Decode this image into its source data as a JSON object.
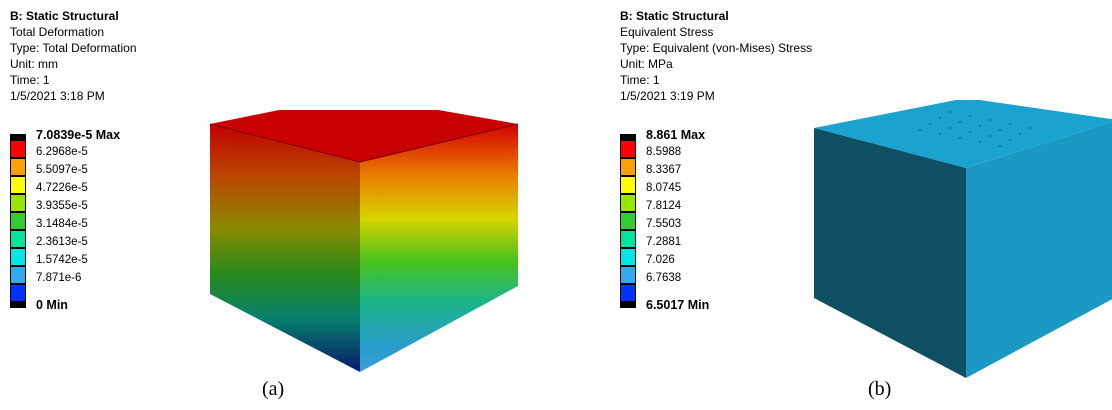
{
  "panel_a": {
    "analysis": "B: Static Structural",
    "result": "Total Deformation",
    "type": "Type: Total Deformation",
    "unit": "Unit: mm",
    "time": "Time: 1",
    "date": "1/5/2021 3:18 PM",
    "legend": {
      "max_label": "7.0839e-5 Max",
      "min_label": "0 Min",
      "levels": [
        "6.2968e-5",
        "5.5097e-5",
        "4.7226e-5",
        "3.9355e-5",
        "3.1484e-5",
        "2.3613e-5",
        "1.5742e-5",
        "7.871e-6"
      ],
      "colors": [
        "#ff0000",
        "#ff9f00",
        "#ffff00",
        "#99e500",
        "#33cc33",
        "#00e59a",
        "#00e5e5",
        "#33aaee",
        "#0033ff"
      ]
    },
    "caption": "(a)"
  },
  "panel_b": {
    "analysis": "B: Static Structural",
    "result": "Equivalent Stress",
    "type": "Type: Equivalent (von-Mises) Stress",
    "unit": "Unit: MPa",
    "time": "Time: 1",
    "date": "1/5/2021 3:19 PM",
    "legend": {
      "max_label": "8.861 Max",
      "min_label": "6.5017 Min",
      "levels": [
        "8.5988",
        "8.3367",
        "8.0745",
        "7.8124",
        "7.5503",
        "7.2881",
        "7.026",
        "6.7638"
      ],
      "colors": [
        "#ff0000",
        "#ff9f00",
        "#ffff00",
        "#99e500",
        "#33cc33",
        "#00e59a",
        "#00e5e5",
        "#33aaee",
        "#0033ff"
      ]
    },
    "caption": "(b)"
  }
}
